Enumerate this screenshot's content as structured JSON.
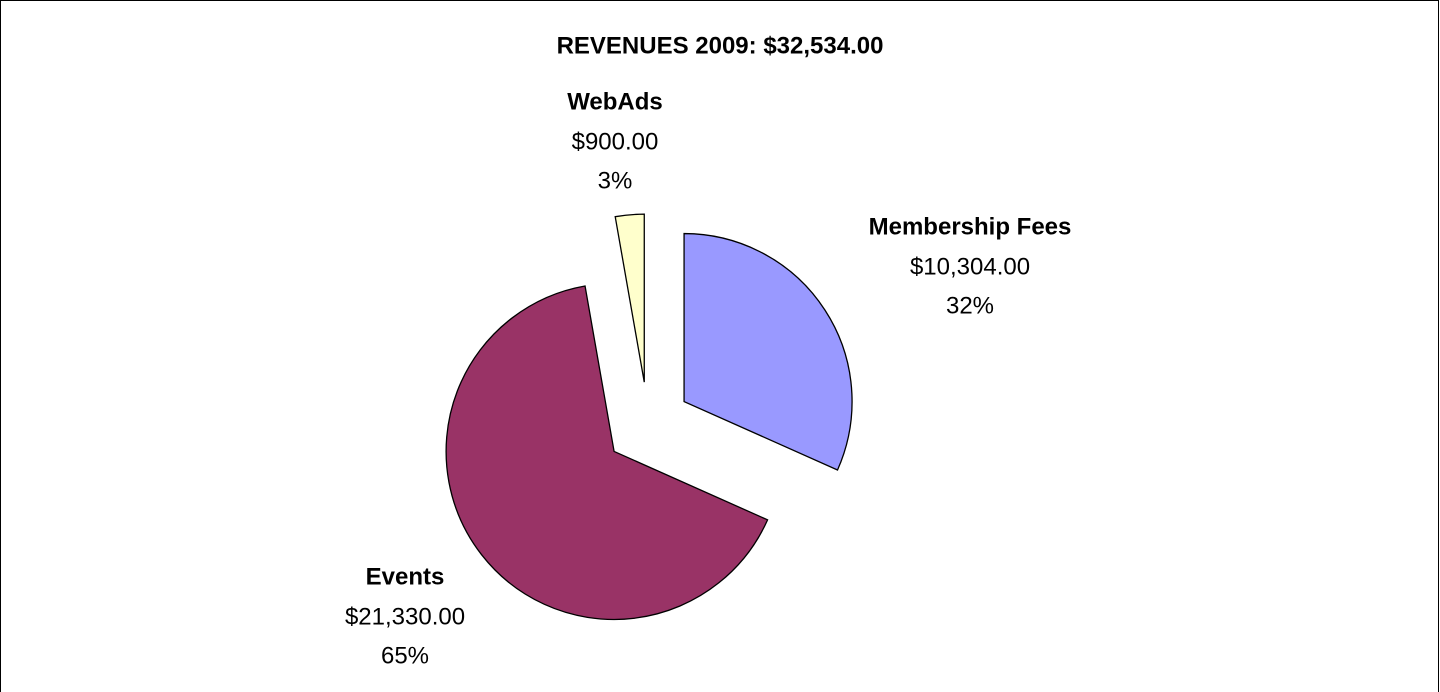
{
  "chart_data": {
    "type": "pie",
    "title": "REVENUES 2009:  $32,534.00",
    "categories": [
      "Membership Fees",
      "Events",
      "WebAds"
    ],
    "values": [
      10304,
      21330,
      900
    ],
    "value_labels": [
      "$10,304.00",
      "$21,330.00",
      "$900.00"
    ],
    "percents": [
      32,
      65,
      3
    ],
    "percent_labels": [
      "32%",
      "65%",
      "3%"
    ],
    "colors": [
      "#9999ff",
      "#993366",
      "#ffffcc"
    ],
    "exploded": true
  }
}
